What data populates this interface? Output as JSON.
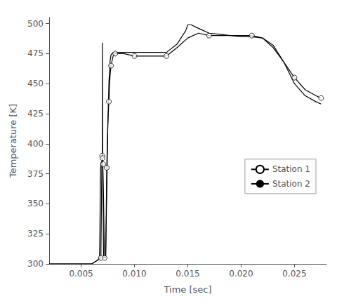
{
  "chart_data": {
    "type": "line",
    "xlabel": "Time [sec]",
    "ylabel": "Temperature [K]",
    "xlim": [
      0.002,
      0.028
    ],
    "ylim": [
      300,
      505
    ],
    "xticks": [
      {
        "value": 0.005,
        "label": "0.005"
      },
      {
        "value": 0.01,
        "label": "0.010"
      },
      {
        "value": 0.015,
        "label": "0.015"
      },
      {
        "value": 0.02,
        "label": "0.020"
      },
      {
        "value": 0.025,
        "label": "0.025"
      }
    ],
    "yticks": [
      300,
      325,
      350,
      375,
      400,
      425,
      450,
      475,
      500
    ],
    "grid": false,
    "legend": "right",
    "series": [
      {
        "name": "Station 1",
        "color": "#000000",
        "marker": "circle",
        "x": [
          0.002,
          0.006,
          0.00685,
          0.00688,
          0.00691,
          0.00694,
          0.00697,
          0.007,
          0.00703,
          0.00706,
          0.0071,
          0.00715,
          0.0072,
          0.0073,
          0.0074,
          0.0075,
          0.0076,
          0.0077,
          0.0078,
          0.008,
          0.0082,
          0.009,
          0.01,
          0.011,
          0.012,
          0.013,
          0.014,
          0.015,
          0.016,
          0.017,
          0.018,
          0.019,
          0.02,
          0.021,
          0.022,
          0.023,
          0.024,
          0.025,
          0.026,
          0.027,
          0.0275
        ],
        "values": [
          300,
          300,
          305,
          330,
          358,
          385,
          390,
          388,
          383,
          383,
          355,
          325,
          305,
          305,
          380,
          415,
          435,
          455,
          465,
          473,
          475,
          475,
          473,
          473,
          473,
          473,
          480,
          488,
          492,
          490,
          490,
          490,
          490,
          490,
          488,
          480,
          468,
          455,
          445,
          440,
          438
        ],
        "marker_x": [
          0.00685,
          0.00697,
          0.007,
          0.00706,
          0.0072,
          0.0074,
          0.0076,
          0.0078,
          0.0082,
          0.01,
          0.013,
          0.017,
          0.021,
          0.025,
          0.0275
        ],
        "marker_values": [
          305,
          390,
          388,
          383,
          305,
          380,
          435,
          465,
          475,
          473,
          473,
          490,
          490,
          455,
          438
        ]
      },
      {
        "name": "Station 2",
        "color": "#000000",
        "x": [
          0.002,
          0.006,
          0.0067,
          0.00673,
          0.00676,
          0.00679,
          0.00682,
          0.00685,
          0.00688,
          0.0069,
          0.00693,
          0.00696,
          0.00699,
          0.007,
          0.00703,
          0.00706,
          0.0071,
          0.00715,
          0.0072,
          0.0073,
          0.0074,
          0.0075,
          0.0076,
          0.0077,
          0.0078,
          0.0079,
          0.008,
          0.0082,
          0.0084,
          0.0086,
          0.009,
          0.0095,
          0.01,
          0.011,
          0.012,
          0.013,
          0.014,
          0.0148,
          0.015,
          0.0153,
          0.016,
          0.017,
          0.018,
          0.019,
          0.02,
          0.021,
          0.022,
          0.023,
          0.024,
          0.025,
          0.026,
          0.027,
          0.0275
        ],
        "values": [
          300,
          300,
          304,
          310,
          330,
          355,
          378,
          383,
          385,
          383,
          382,
          383,
          380,
          484,
          382,
          382,
          305,
          305,
          305,
          305,
          358,
          415,
          450,
          468,
          474,
          475,
          476,
          476,
          476,
          476,
          476,
          476,
          476,
          476,
          476,
          476,
          483,
          494,
          499,
          499,
          496,
          492,
          491,
          490,
          489,
          489,
          488,
          482,
          468,
          450,
          440,
          435,
          433
        ]
      }
    ]
  }
}
